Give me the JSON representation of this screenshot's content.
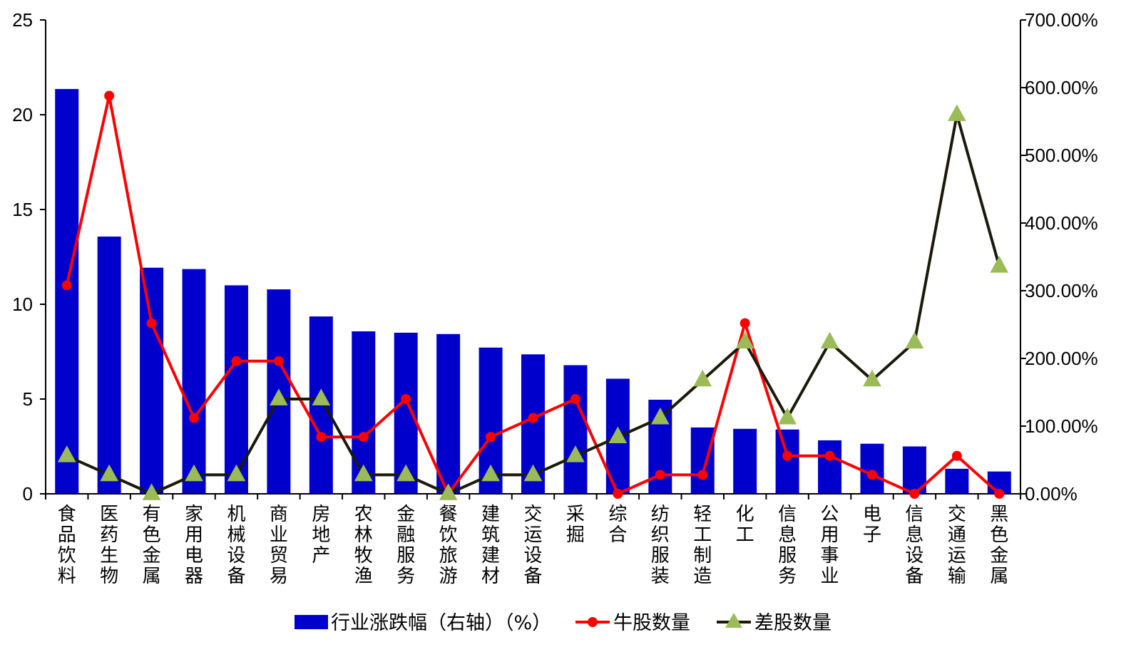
{
  "chart_data": {
    "type": "bar+line",
    "categories": [
      "食品饮料",
      "医药生物",
      "有色金属",
      "家用电器",
      "机械设备",
      "商业贸易",
      "房地产",
      "农林牧渔",
      "金融服务",
      "餐饮旅游",
      "建筑建材",
      "交运设备",
      "采掘",
      "综合",
      "纺织服装",
      "轻工制造",
      "化工",
      "信息服务",
      "公用事业",
      "电子",
      "信息设备",
      "交通运输",
      "黑色金属"
    ],
    "series": [
      {
        "name": "行业涨跌幅（右轴）（%）",
        "type": "bar",
        "axis": "right",
        "color": "#0000CC",
        "values": [
          598,
          380,
          334,
          332,
          308,
          302,
          262,
          240,
          238,
          236,
          216,
          206,
          190,
          170,
          139,
          98,
          96,
          95,
          79,
          74,
          70,
          37,
          33
        ]
      },
      {
        "name": "牛股数量",
        "type": "line",
        "axis": "left",
        "color": "#FF0000",
        "marker": "circle",
        "values": [
          11,
          21,
          9,
          4,
          7,
          7,
          3,
          3,
          5,
          0,
          3,
          4,
          5,
          0,
          1,
          1,
          9,
          2,
          2,
          1,
          0,
          2,
          0
        ]
      },
      {
        "name": "差股数量",
        "type": "line",
        "axis": "left",
        "color": "#1A1A0A",
        "marker": "triangle",
        "marker_color": "#9BBB59",
        "values": [
          2,
          1,
          0,
          1,
          1,
          5,
          5,
          1,
          1,
          0,
          1,
          1,
          2,
          3,
          4,
          6,
          8,
          4,
          8,
          6,
          8,
          20,
          12
        ]
      }
    ],
    "left_axis": {
      "min": 0,
      "max": 25,
      "ticks": [
        "0",
        "5",
        "10",
        "15",
        "20",
        "25"
      ]
    },
    "right_axis": {
      "min": 0,
      "max": 700,
      "ticks": [
        "0.00%",
        "100.00%",
        "200.00%",
        "300.00%",
        "400.00%",
        "500.00%",
        "600.00%",
        "700.00%"
      ]
    },
    "legend_position": "bottom",
    "grid": false
  }
}
